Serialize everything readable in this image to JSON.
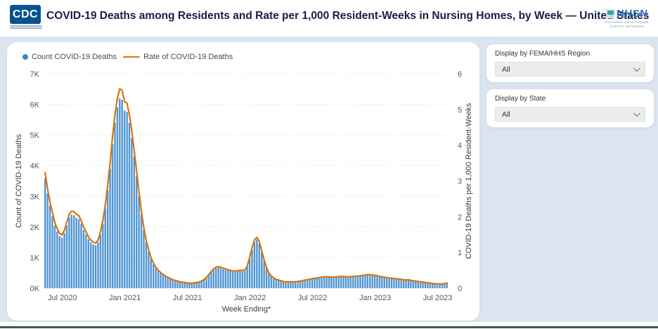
{
  "header": {
    "title": "COVID-19 Deaths among Residents and Rate per 1,000 Resident-Weeks in Nursing Homes, by Week — United States",
    "cdc_logo_text": "CDC",
    "nhsn_logo_text": "NHSN",
    "nhsn_tagline_line1": "NATIONAL HEALTHCARE",
    "nhsn_tagline_line2": "SAFETY NETWORK"
  },
  "filters": {
    "region": {
      "label": "Display by FEMA/HHS Region",
      "value": "All"
    },
    "state": {
      "label": "Display by State",
      "value": "All"
    }
  },
  "colors": {
    "bar_blue": "#4f95d3",
    "legend_dot_blue": "#3787c8",
    "line_orange": "#d9730e",
    "grid": "#d9d9d9",
    "axis_text": "#555555",
    "background": "#dbe5f0",
    "footer_bar": "#3c5c50",
    "title_navy": "#1b1c44"
  },
  "chart_data": {
    "type": "bar",
    "title": "COVID-19 Deaths among Residents and Rate per 1,000 Resident-Weeks in Nursing Homes, by Week — United States",
    "xlabel": "Week Ending*",
    "x_tick_labels": [
      "Jul 2020",
      "Jan 2021",
      "Jul 2021",
      "Jan 2022",
      "Jul 2022",
      "Jan 2023",
      "Jul 2023"
    ],
    "x_tick_indices": [
      7,
      33,
      59,
      85,
      111,
      137,
      163
    ],
    "left_axis": {
      "label": "Count of COVID-19 Deaths",
      "ticks": [
        "0K",
        "1K",
        "2K",
        "3K",
        "4K",
        "5K",
        "6K",
        "7K"
      ],
      "max": 7000
    },
    "right_axis": {
      "label": "COVID-19 Deaths per 1,000 Resident-Weeks",
      "ticks": [
        "0",
        "1",
        "2",
        "3",
        "4",
        "5",
        "6"
      ],
      "max": 6
    },
    "legend": [
      {
        "name": "Count COVID-19 Deaths",
        "marker": "circle"
      },
      {
        "name": "Rate of COVID-19 Deaths",
        "marker": "line"
      }
    ],
    "series": [
      {
        "name": "Count COVID-19 Deaths",
        "type": "bar",
        "axis": "left",
        "color": "#4f95d3",
        "values": [
          3600,
          3100,
          2700,
          2350,
          2050,
          1850,
          1700,
          1650,
          1800,
          2050,
          2300,
          2400,
          2380,
          2300,
          2250,
          2100,
          1900,
          1750,
          1600,
          1500,
          1430,
          1400,
          1500,
          1750,
          2100,
          2600,
          3200,
          3900,
          4700,
          5400,
          5900,
          6200,
          6150,
          5800,
          5750,
          5400,
          4900,
          4300,
          3650,
          3000,
          2400,
          1900,
          1500,
          1200,
          950,
          780,
          650,
          560,
          490,
          430,
          380,
          340,
          300,
          270,
          245,
          225,
          205,
          190,
          175,
          165,
          160,
          160,
          165,
          175,
          195,
          225,
          270,
          330,
          420,
          520,
          600,
          650,
          670,
          650,
          620,
          600,
          580,
          560,
          545,
          530,
          545,
          560,
          550,
          570,
          700,
          950,
          1250,
          1500,
          1580,
          1450,
          1180,
          880,
          640,
          480,
          380,
          320,
          280,
          250,
          230,
          215,
          205,
          200,
          195,
          195,
          200,
          210,
          220,
          235,
          250,
          265,
          280,
          295,
          310,
          320,
          330,
          340,
          350,
          360,
          355,
          345,
          340,
          350,
          360,
          370,
          365,
          355,
          350,
          355,
          365,
          375,
          380,
          390,
          400,
          415,
          425,
          420,
          410,
          400,
          385,
          370,
          355,
          345,
          335,
          325,
          315,
          305,
          295,
          285,
          275,
          265,
          258,
          262,
          248,
          235,
          222,
          210,
          198,
          186,
          175,
          165,
          155,
          148,
          142,
          138,
          135,
          138,
          148,
          162
        ]
      },
      {
        "name": "Rate of COVID-19 Deaths",
        "type": "line",
        "axis": "right",
        "color": "#d9730e",
        "values": [
          3.24,
          2.79,
          2.43,
          2.12,
          1.85,
          1.67,
          1.53,
          1.49,
          1.62,
          1.85,
          2.07,
          2.16,
          2.14,
          2.07,
          2.03,
          1.89,
          1.71,
          1.58,
          1.44,
          1.35,
          1.29,
          1.26,
          1.35,
          1.58,
          1.89,
          2.34,
          2.88,
          3.51,
          4.23,
          4.86,
          5.31,
          5.58,
          5.54,
          5.22,
          5.18,
          4.86,
          4.41,
          3.87,
          3.29,
          2.7,
          2.16,
          1.71,
          1.35,
          1.08,
          0.86,
          0.7,
          0.59,
          0.5,
          0.44,
          0.39,
          0.34,
          0.31,
          0.27,
          0.24,
          0.22,
          0.2,
          0.18,
          0.17,
          0.16,
          0.15,
          0.14,
          0.14,
          0.15,
          0.16,
          0.18,
          0.2,
          0.24,
          0.3,
          0.38,
          0.47,
          0.54,
          0.59,
          0.6,
          0.59,
          0.56,
          0.54,
          0.52,
          0.5,
          0.49,
          0.48,
          0.49,
          0.5,
          0.5,
          0.51,
          0.63,
          0.86,
          1.13,
          1.35,
          1.42,
          1.31,
          1.06,
          0.79,
          0.58,
          0.43,
          0.34,
          0.29,
          0.25,
          0.23,
          0.21,
          0.19,
          0.18,
          0.18,
          0.18,
          0.18,
          0.18,
          0.19,
          0.2,
          0.21,
          0.23,
          0.24,
          0.25,
          0.27,
          0.28,
          0.29,
          0.3,
          0.31,
          0.32,
          0.32,
          0.32,
          0.31,
          0.31,
          0.32,
          0.32,
          0.33,
          0.33,
          0.32,
          0.32,
          0.32,
          0.33,
          0.34,
          0.34,
          0.35,
          0.36,
          0.37,
          0.38,
          0.38,
          0.37,
          0.36,
          0.35,
          0.33,
          0.32,
          0.31,
          0.3,
          0.29,
          0.28,
          0.27,
          0.27,
          0.26,
          0.25,
          0.24,
          0.23,
          0.24,
          0.22,
          0.21,
          0.2,
          0.19,
          0.18,
          0.17,
          0.16,
          0.15,
          0.14,
          0.13,
          0.13,
          0.12,
          0.12,
          0.12,
          0.13,
          0.15
        ]
      }
    ]
  }
}
